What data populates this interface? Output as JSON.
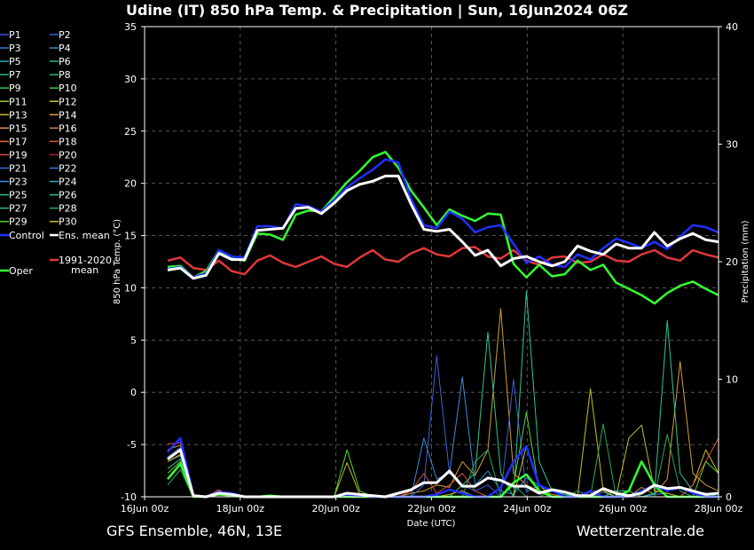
{
  "chart_data": {
    "type": "line",
    "title": "Udine  (IT)  850 hPa Temp. & Precipitation | Sun, 16Jun2024 06Z",
    "xlabel": "Date (UTC)",
    "ylabel": "850 hPa Temp. (°C)",
    "y2label": "Precipitation (mm)",
    "ylim": [
      -10,
      35
    ],
    "y2lim": [
      0,
      40
    ],
    "yticks": [
      -10,
      -5,
      0,
      5,
      10,
      15,
      20,
      25,
      30,
      35
    ],
    "y2ticks": [
      0,
      10,
      20,
      30,
      40
    ],
    "x_tick_labels": [
      "16Jun 00z",
      "18Jun 00z",
      "20Jun 00z",
      "22Jun 00z",
      "24Jun 00z",
      "26Jun 00z",
      "28Jun 00z"
    ],
    "x_step_hours": 6,
    "x_start": "2024-06-16 06z",
    "grid": true,
    "footer_left": "GFS Ensemble, 46N, 13E",
    "footer_right": "Wetterzentrale.de",
    "legend": [
      {
        "label": "P1",
        "color": "#3b4ee8"
      },
      {
        "label": "P2",
        "color": "#3b62d8"
      },
      {
        "label": "P3",
        "color": "#3a78c8"
      },
      {
        "label": "P4",
        "color": "#2f8fbd"
      },
      {
        "label": "P5",
        "color": "#2aa3b3"
      },
      {
        "label": "P6",
        "color": "#25b39a"
      },
      {
        "label": "P7",
        "color": "#25bb85"
      },
      {
        "label": "P8",
        "color": "#2db86e"
      },
      {
        "label": "P9",
        "color": "#36c05a"
      },
      {
        "label": "P10",
        "color": "#3fcf3a"
      },
      {
        "label": "P11",
        "color": "#9acd32"
      },
      {
        "label": "P12",
        "color": "#c8c832"
      },
      {
        "label": "P13",
        "color": "#d6b83a"
      },
      {
        "label": "P14",
        "color": "#e0a040"
      },
      {
        "label": "P15",
        "color": "#e09060"
      },
      {
        "label": "P16",
        "color": "#d88050"
      },
      {
        "label": "P17",
        "color": "#e07040"
      },
      {
        "label": "P18",
        "color": "#d85a3a"
      },
      {
        "label": "P19",
        "color": "#e04a4a"
      },
      {
        "label": "P20",
        "color": "#b81f1f"
      },
      {
        "label": "P21",
        "color": "#3a6adf"
      },
      {
        "label": "P22",
        "color": "#3a7ee0"
      },
      {
        "label": "P23",
        "color": "#3a9ad8"
      },
      {
        "label": "P24",
        "color": "#2fb0c0"
      },
      {
        "label": "P25",
        "color": "#2ac0a0"
      },
      {
        "label": "P26",
        "color": "#2cc890"
      },
      {
        "label": "P27",
        "color": "#30c078"
      },
      {
        "label": "P28",
        "color": "#2aa860"
      },
      {
        "label": "P29",
        "color": "#58d830"
      },
      {
        "label": "P30",
        "color": "#c8c020"
      },
      {
        "label": "Control",
        "color": "#2030ff"
      },
      {
        "label": "Ens. mean",
        "color": "#ffffff"
      },
      {
        "label": "1991-2020",
        "label2": "mean",
        "color": "#e03838"
      },
      {
        "label": "Oper",
        "color": "#33ff33"
      }
    ],
    "series": [
      {
        "name": "Ens. mean",
        "color": "#ffffff",
        "width": 3,
        "values": [
          11.7,
          11.9,
          10.9,
          11.2,
          13.3,
          12.7,
          12.7,
          15.5,
          15.6,
          15.7,
          17.6,
          17.7,
          17.1,
          18.1,
          19.3,
          19.9,
          20.2,
          20.7,
          20.7,
          18.0,
          15.6,
          15.4,
          15.6,
          14.4,
          13.1,
          13.6,
          12.1,
          12.8,
          13.0,
          12.5,
          12.1,
          12.5,
          14.0,
          13.5,
          13.2,
          14.2,
          13.8,
          13.8,
          15.3,
          14.0,
          14.7,
          15.2,
          14.6,
          14.4
        ]
      },
      {
        "name": "Control",
        "color": "#2030ff",
        "width": 2.5,
        "values": [
          11.8,
          12.0,
          11.0,
          11.4,
          13.6,
          13.0,
          12.9,
          15.9,
          15.9,
          15.7,
          18.0,
          17.8,
          17.3,
          18.4,
          19.6,
          20.5,
          21.3,
          22.3,
          22.0,
          18.5,
          16.0,
          15.7,
          17.3,
          16.6,
          15.3,
          15.8,
          16.0,
          14.2,
          12.4,
          13.0,
          12.2,
          12.0,
          13.2,
          12.7,
          13.8,
          14.7,
          14.3,
          13.8,
          14.4,
          13.7,
          14.9,
          16.0,
          15.8,
          15.3
        ]
      },
      {
        "name": "Oper",
        "color": "#33ff33",
        "width": 2.5,
        "values": [
          12.0,
          12.1,
          11.0,
          11.6,
          13.6,
          12.8,
          12.6,
          15.2,
          15.1,
          14.6,
          17.0,
          17.4,
          17.3,
          18.7,
          20.1,
          21.2,
          22.5,
          23.0,
          21.5,
          19.3,
          17.7,
          16.0,
          17.5,
          16.9,
          16.4,
          17.1,
          17.0,
          12.3,
          11.0,
          12.2,
          11.1,
          11.3,
          12.6,
          11.7,
          12.2,
          10.5,
          9.9,
          9.3,
          8.5,
          9.5,
          10.2,
          10.6,
          9.9,
          9.3
        ]
      },
      {
        "name": "1991-2020",
        "color": "#e03838",
        "width": 2.5,
        "values": [
          12.6,
          12.9,
          11.9,
          11.7,
          12.6,
          11.6,
          11.3,
          12.6,
          13.1,
          12.4,
          12.0,
          12.5,
          13.0,
          12.3,
          12.0,
          12.9,
          13.6,
          12.7,
          12.5,
          13.3,
          13.8,
          13.2,
          13.0,
          13.8,
          13.9,
          13.0,
          12.8,
          13.6,
          12.6,
          12.2,
          12.9,
          13.0,
          12.4,
          12.5,
          13.2,
          12.6,
          12.5,
          13.2,
          13.6,
          12.9,
          12.6,
          13.6,
          13.2,
          12.9
        ]
      }
    ],
    "precip_series": [
      {
        "name": "Ens. mean",
        "color": "#ffffff",
        "width": 3,
        "values": [
          3.2,
          4.0,
          0.1,
          0.0,
          0.3,
          0.2,
          0.0,
          0.0,
          0.0,
          0.0,
          0.0,
          0.0,
          0.0,
          0.0,
          0.3,
          0.2,
          0.1,
          0.0,
          0.3,
          0.6,
          1.2,
          1.2,
          2.2,
          0.9,
          0.9,
          1.6,
          1.4,
          0.9,
          0.9,
          0.3,
          0.6,
          0.4,
          0.1,
          0.1,
          0.7,
          0.3,
          0.1,
          0.3,
          1.0,
          0.7,
          0.8,
          0.5,
          0.2,
          0.3
        ]
      },
      {
        "name": "Control",
        "color": "#2030ff",
        "width": 2.5,
        "values": [
          3.8,
          5.0,
          0.1,
          0.0,
          0.4,
          0.3,
          0.0,
          0.0,
          0.0,
          0.0,
          0.0,
          0.0,
          0.0,
          0.0,
          0.2,
          0.1,
          0.0,
          0.0,
          0.0,
          0.0,
          0.0,
          0.2,
          0.6,
          0.3,
          0.0,
          0.0,
          0.8,
          3.0,
          4.3,
          1.0,
          0.5,
          0.0,
          0.0,
          0.5,
          0.0,
          0.0,
          0.0,
          0.5,
          1.0,
          0.5,
          0.8,
          0.3,
          0.0,
          0.0
        ]
      },
      {
        "name": "Oper",
        "color": "#33ff33",
        "width": 2.5,
        "values": [
          1.5,
          2.8,
          0.0,
          0.0,
          0.2,
          0.1,
          0.0,
          0.0,
          0.1,
          0.0,
          0.0,
          0.0,
          0.0,
          0.0,
          0.0,
          0.0,
          0.0,
          0.0,
          0.0,
          0.0,
          0.0,
          0.0,
          0.0,
          0.0,
          0.0,
          0.0,
          0.0,
          1.2,
          1.9,
          0.5,
          0.0,
          0.0,
          0.0,
          0.0,
          0.0,
          0.0,
          0.5,
          3.0,
          1.0,
          0.0,
          0.0,
          0.0,
          0.0,
          0.0
        ]
      },
      {
        "name": "P12",
        "color": "#d6a030",
        "width": 1,
        "values": [
          4.0,
          4.4,
          0.0,
          0.0,
          0.0,
          0.0,
          0.0,
          0.0,
          0.0,
          0.0,
          0.0,
          0.0,
          0.0,
          0.0,
          0.0,
          0.0,
          0.0,
          0.0,
          0.0,
          0.3,
          0.5,
          1.0,
          0.8,
          3.0,
          1.8,
          4.0,
          16.0,
          2.0,
          1.0,
          0.5,
          0.2,
          0.0,
          0.0,
          0.4,
          0.6,
          0.2,
          0.0,
          0.8,
          0.2,
          1.5,
          11.5,
          2.0,
          1.0,
          0.5
        ]
      },
      {
        "name": "P23",
        "color": "#3a8ad8",
        "width": 1,
        "values": [
          3.0,
          3.5,
          0.0,
          0.0,
          0.5,
          0.2,
          0.0,
          0.0,
          0.0,
          0.0,
          0.0,
          0.0,
          0.0,
          0.0,
          0.0,
          0.0,
          0.0,
          0.0,
          0.0,
          0.0,
          5.0,
          1.5,
          2.0,
          10.2,
          1.0,
          2.2,
          0.5,
          0.2,
          1.6,
          1.0,
          0.0,
          0.0,
          0.0,
          0.0,
          0.4,
          0.0,
          0.0,
          0.0,
          0.2,
          0.3,
          0.0,
          0.0,
          0.0,
          0.0
        ]
      },
      {
        "name": "P26",
        "color": "#2cc890",
        "width": 1,
        "values": [
          2.4,
          3.2,
          0.0,
          0.0,
          0.0,
          0.0,
          0.0,
          0.0,
          0.0,
          0.0,
          0.0,
          0.0,
          0.0,
          0.0,
          0.0,
          0.0,
          0.0,
          0.0,
          0.0,
          0.0,
          0.0,
          0.0,
          0.0,
          1.0,
          2.0,
          14.0,
          2.0,
          0.0,
          17.5,
          3.0,
          0.5,
          0.2,
          0.0,
          0.0,
          0.0,
          0.5,
          0.5,
          0.0,
          0.3,
          15.0,
          2.0,
          0.5,
          0.3,
          0.0
        ]
      },
      {
        "name": "P2",
        "color": "#3b62d8",
        "width": 1,
        "values": [
          3.4,
          4.2,
          0.0,
          0.0,
          0.0,
          0.0,
          0.0,
          0.0,
          0.0,
          0.0,
          0.0,
          0.0,
          0.0,
          0.0,
          0.0,
          0.0,
          0.0,
          0.0,
          0.0,
          0.0,
          1.0,
          12.0,
          2.0,
          1.0,
          0.5,
          1.0,
          0.0,
          10.0,
          0.4,
          1.0,
          0.0,
          0.0,
          0.0,
          0.0,
          0.0,
          0.0,
          0.0,
          0.0,
          0.0,
          0.0,
          0.0,
          0.0,
          0.0,
          0.0
        ]
      },
      {
        "name": "P30",
        "color": "#c8c020",
        "width": 1,
        "values": [
          3.0,
          3.6,
          0.0,
          0.0,
          0.0,
          0.0,
          0.0,
          0.0,
          0.0,
          0.0,
          0.0,
          0.0,
          0.0,
          0.0,
          2.9,
          0.2,
          0.0,
          0.0,
          0.0,
          0.0,
          0.0,
          0.0,
          0.2,
          0.5,
          0.0,
          0.0,
          0.0,
          0.0,
          4.3,
          1.0,
          0.0,
          0.0,
          0.0,
          9.2,
          0.5,
          0.0,
          5.0,
          6.1,
          0.5,
          0.3,
          0.0,
          1.0,
          4.0,
          2.0
        ]
      },
      {
        "name": "P28",
        "color": "#2aa860",
        "width": 1,
        "values": [
          1.0,
          2.3,
          0.0,
          0.0,
          0.0,
          0.0,
          0.0,
          0.0,
          0.0,
          0.0,
          0.0,
          0.0,
          0.0,
          0.0,
          0.0,
          0.0,
          0.0,
          0.0,
          0.0,
          0.0,
          0.0,
          0.0,
          0.0,
          0.0,
          3.0,
          4.0,
          0.0,
          1.0,
          0.0,
          0.0,
          0.5,
          0.0,
          0.5,
          0.0,
          6.2,
          0.0,
          0.5,
          0.0,
          0.0,
          5.3,
          0.5,
          0.0,
          0.0,
          0.0
        ]
      },
      {
        "name": "P19",
        "color": "#e04a4a",
        "width": 1,
        "values": [
          4.5,
          4.6,
          0.0,
          0.0,
          0.6,
          0.0,
          0.0,
          0.0,
          0.0,
          0.0,
          0.0,
          0.0,
          0.0,
          0.0,
          0.0,
          0.0,
          0.0,
          0.0,
          0.0,
          0.5,
          2.0,
          0.3,
          1.0,
          2.0,
          0.5,
          0.0,
          0.0,
          0.0,
          0.0,
          0.0,
          0.0,
          0.0,
          0.0,
          0.0,
          0.0,
          0.0,
          0.0,
          0.0,
          0.0,
          0.0,
          0.0,
          1.0,
          3.0,
          5.0
        ]
      },
      {
        "name": "P29",
        "color": "#58d830",
        "width": 1,
        "values": [
          2.0,
          3.0,
          0.0,
          0.0,
          0.0,
          0.0,
          0.0,
          0.0,
          0.0,
          0.0,
          0.0,
          0.0,
          0.0,
          0.0,
          4.0,
          0.5,
          0.0,
          0.0,
          0.0,
          0.0,
          0.0,
          0.0,
          0.0,
          0.0,
          0.0,
          0.0,
          0.0,
          1.0,
          7.2,
          0.5,
          0.0,
          0.0,
          0.0,
          0.0,
          0.0,
          0.0,
          0.0,
          0.0,
          0.0,
          0.0,
          0.0,
          0.0,
          3.0,
          2.0
        ]
      }
    ]
  }
}
